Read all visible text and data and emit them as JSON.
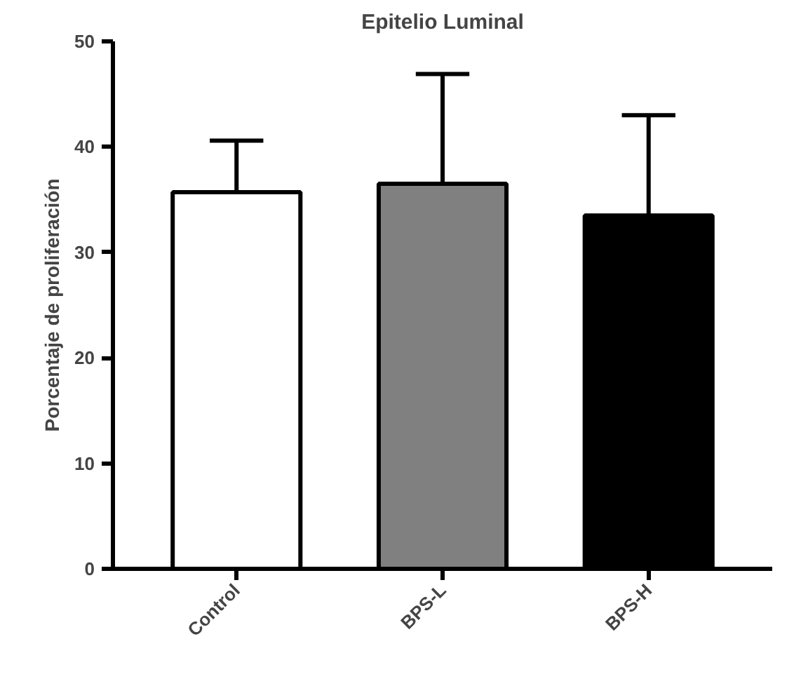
{
  "chart_data": {
    "type": "bar",
    "title": "Epitelio Luminal",
    "ylabel": "Porcentaje de proliferación",
    "categories": [
      "Control",
      "BPS-L",
      "BPS-H"
    ],
    "values": [
      35.7,
      36.5,
      33.5
    ],
    "errors": [
      4.9,
      10.4,
      9.5
    ],
    "colors": [
      "#ffffff",
      "#808080",
      "#000000"
    ],
    "ylim": [
      0,
      50
    ],
    "yticks": [
      0,
      10,
      20,
      30,
      40,
      50
    ],
    "grid": false
  }
}
